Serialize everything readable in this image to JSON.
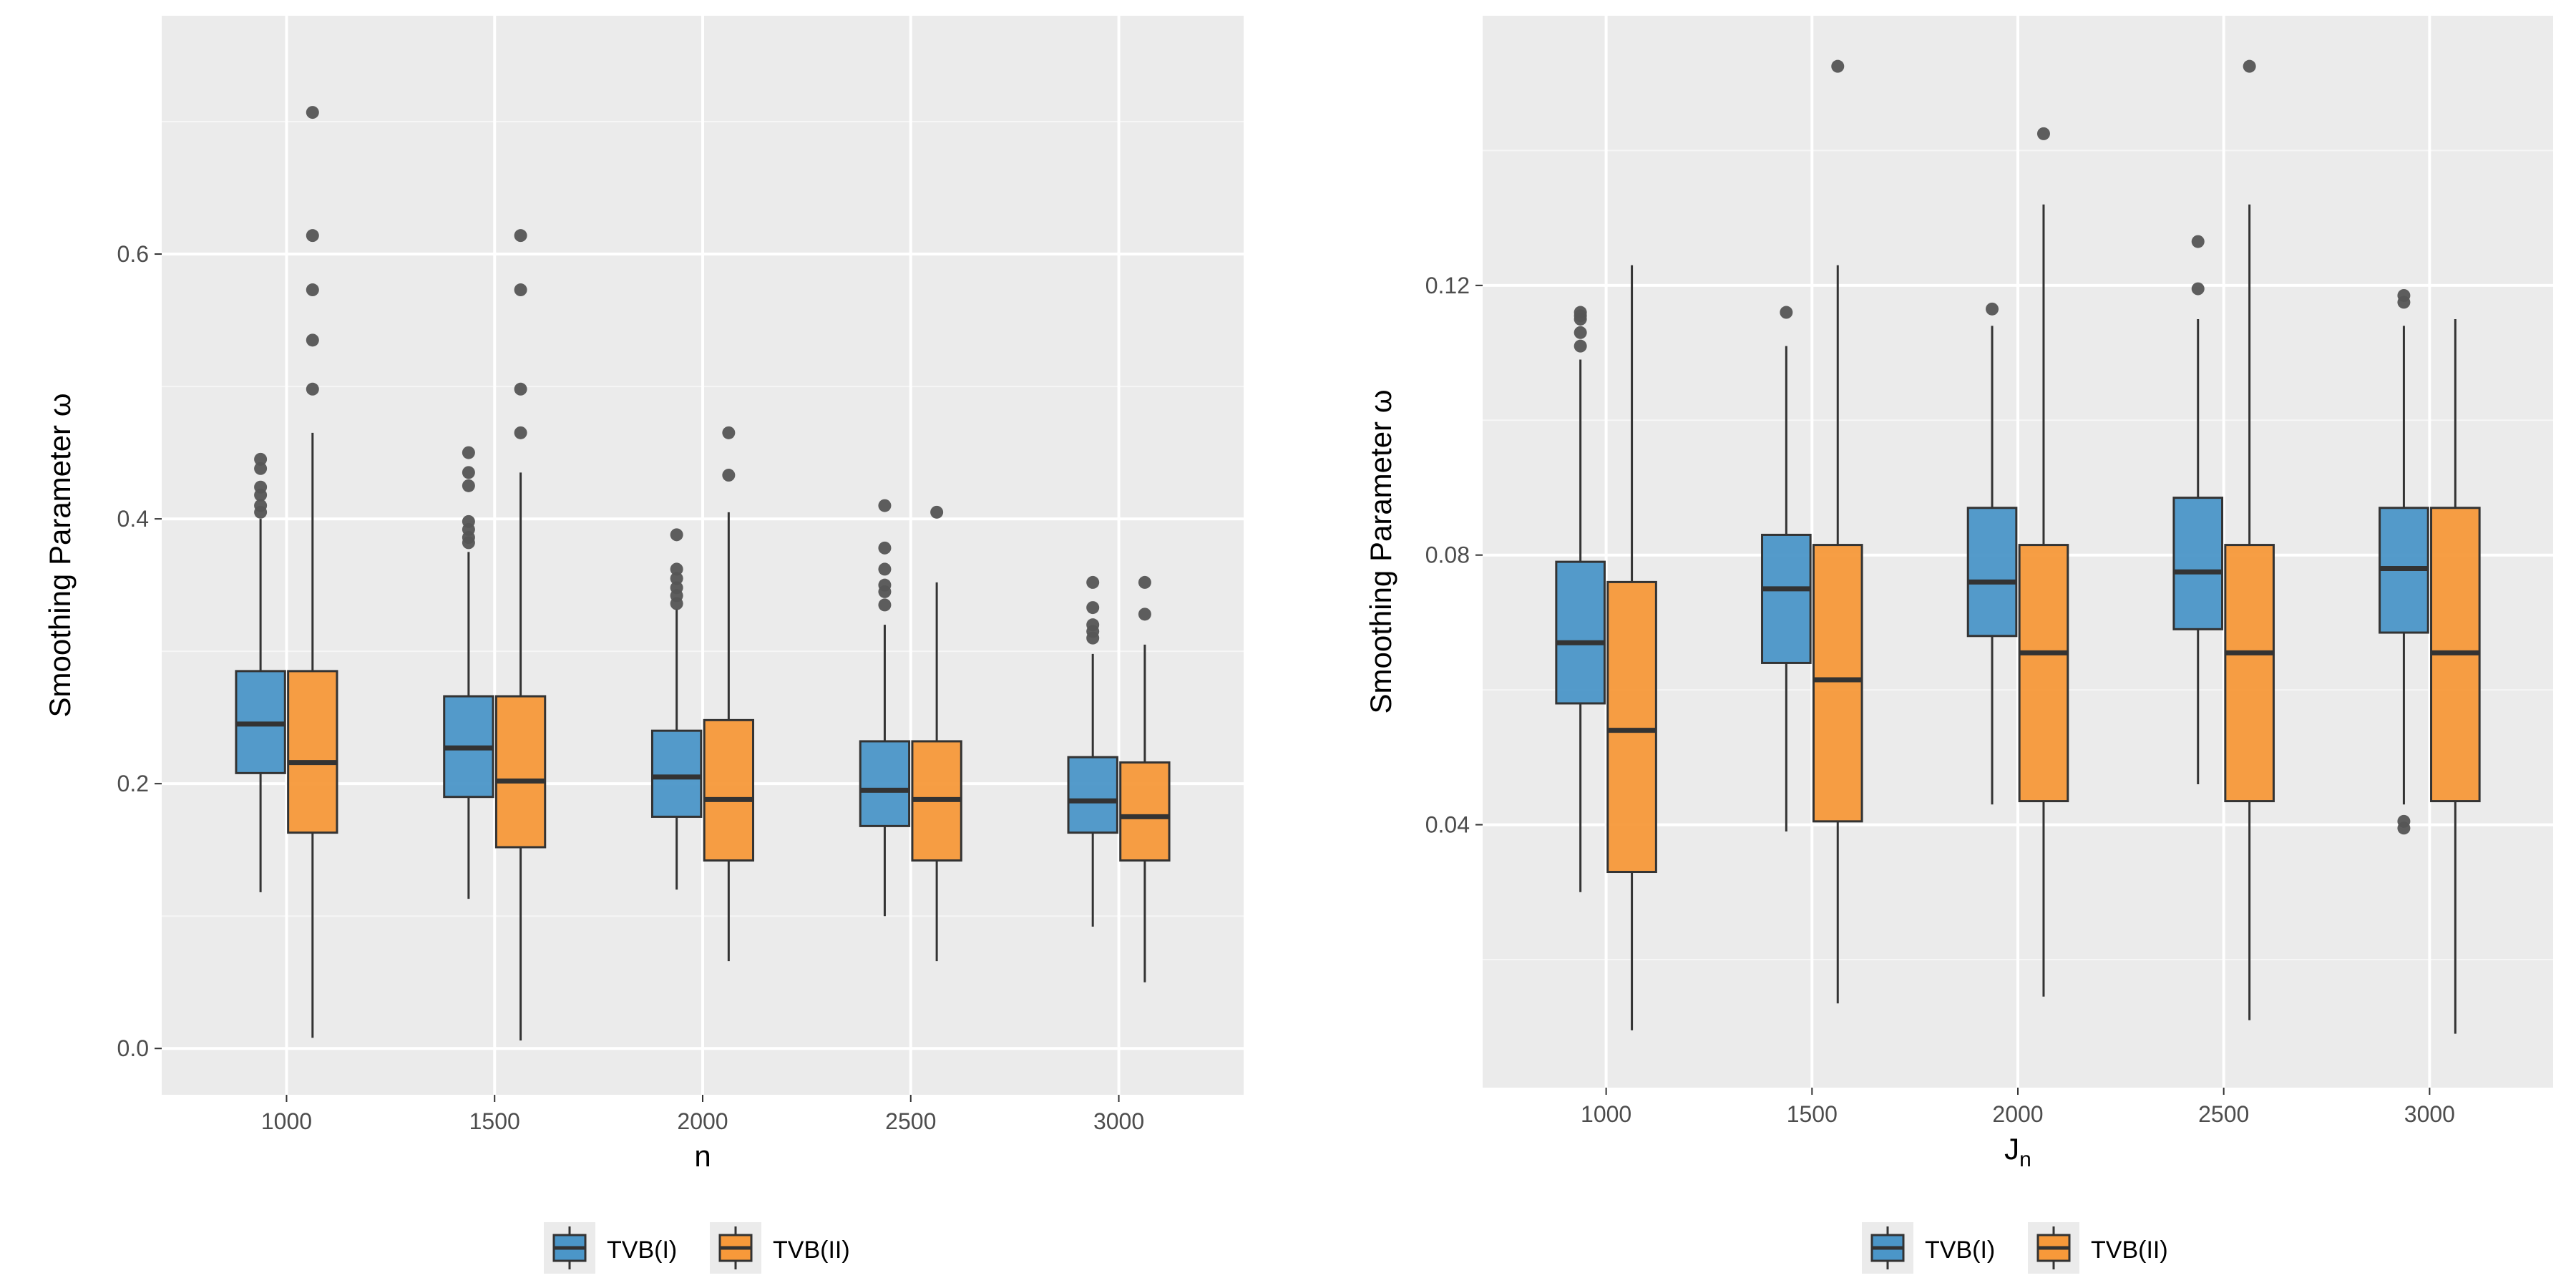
{
  "colors": {
    "panel_bg": "#EBEBEB",
    "grid": "#FFFFFF",
    "outline": "#333333",
    "outlier": "#555555",
    "series": [
      "#4B96C8",
      "#F7993A"
    ]
  },
  "legend": {
    "items": [
      "TVB(I)",
      "TVB(II)"
    ]
  },
  "chart_data": [
    {
      "type": "boxplot",
      "xlabel": "n",
      "ylabel": "Smoothing Parameter ω",
      "ylim": [
        -0.035,
        0.78
      ],
      "yticks": [
        0.0,
        0.2,
        0.4,
        0.6
      ],
      "ytick_labels": [
        "0.0",
        "0.2",
        "0.4",
        "0.6"
      ],
      "categories": [
        "1000",
        "1500",
        "2000",
        "2500",
        "3000"
      ],
      "series": [
        {
          "name": "TVB(I)",
          "boxes": [
            {
              "min": 0.118,
              "q1": 0.208,
              "median": 0.245,
              "q3": 0.285,
              "max": 0.4,
              "outliers": [
                0.405,
                0.41,
                0.418,
                0.424,
                0.438,
                0.445
              ]
            },
            {
              "min": 0.113,
              "q1": 0.19,
              "median": 0.227,
              "q3": 0.266,
              "max": 0.375,
              "outliers": [
                0.382,
                0.386,
                0.392,
                0.398,
                0.425,
                0.435,
                0.45
              ]
            },
            {
              "min": 0.12,
              "q1": 0.175,
              "median": 0.205,
              "q3": 0.24,
              "max": 0.332,
              "outliers": [
                0.336,
                0.342,
                0.348,
                0.355,
                0.362,
                0.388
              ]
            },
            {
              "min": 0.1,
              "q1": 0.168,
              "median": 0.195,
              "q3": 0.232,
              "max": 0.32,
              "outliers": [
                0.335,
                0.345,
                0.35,
                0.362,
                0.378,
                0.41
              ]
            },
            {
              "min": 0.092,
              "q1": 0.163,
              "median": 0.187,
              "q3": 0.22,
              "max": 0.298,
              "outliers": [
                0.31,
                0.315,
                0.32,
                0.333,
                0.352
              ]
            }
          ]
        },
        {
          "name": "TVB(II)",
          "boxes": [
            {
              "min": 0.008,
              "q1": 0.163,
              "median": 0.216,
              "q3": 0.285,
              "max": 0.465,
              "outliers": [
                0.498,
                0.535,
                0.573,
                0.614,
                0.707
              ]
            },
            {
              "min": 0.006,
              "q1": 0.152,
              "median": 0.202,
              "q3": 0.266,
              "max": 0.435,
              "outliers": [
                0.465,
                0.498,
                0.573,
                0.614
              ]
            },
            {
              "min": 0.066,
              "q1": 0.142,
              "median": 0.188,
              "q3": 0.248,
              "max": 0.405,
              "outliers": [
                0.433,
                0.465
              ]
            },
            {
              "min": 0.066,
              "q1": 0.142,
              "median": 0.188,
              "q3": 0.232,
              "max": 0.352,
              "outliers": [
                0.405
              ]
            },
            {
              "min": 0.05,
              "q1": 0.142,
              "median": 0.175,
              "q3": 0.216,
              "max": 0.305,
              "outliers": [
                0.328,
                0.352
              ]
            }
          ]
        }
      ]
    },
    {
      "type": "boxplot",
      "xlabel": "J",
      "xlabel_sub": "n",
      "ylabel": "Smoothing Parameter ω",
      "ylim": [
        0.001,
        0.16
      ],
      "yticks": [
        0.04,
        0.08,
        0.12
      ],
      "ytick_labels": [
        "0.04",
        "0.08",
        "0.12"
      ],
      "categories": [
        "1000",
        "1500",
        "2000",
        "2500",
        "3000"
      ],
      "series": [
        {
          "name": "TVB(I)",
          "boxes": [
            {
              "min": 0.03,
              "q1": 0.058,
              "median": 0.067,
              "q3": 0.079,
              "max": 0.109,
              "outliers": [
                0.111,
                0.113,
                0.115,
                0.1155,
                0.116
              ]
            },
            {
              "min": 0.039,
              "q1": 0.064,
              "median": 0.075,
              "q3": 0.083,
              "max": 0.111,
              "outliers": [
                0.116
              ]
            },
            {
              "min": 0.043,
              "q1": 0.068,
              "median": 0.076,
              "q3": 0.087,
              "max": 0.114,
              "outliers": [
                0.1165
              ]
            },
            {
              "min": 0.046,
              "q1": 0.069,
              "median": 0.0775,
              "q3": 0.0885,
              "max": 0.115,
              "outliers": [
                0.1195,
                0.1265
              ]
            },
            {
              "min": 0.043,
              "q1": 0.0685,
              "median": 0.078,
              "q3": 0.087,
              "max": 0.114,
              "outliers": [
                0.0395,
                0.0405,
                0.1175,
                0.1185
              ]
            }
          ]
        },
        {
          "name": "TVB(II)",
          "boxes": [
            {
              "min": 0.0095,
              "q1": 0.033,
              "median": 0.054,
              "q3": 0.076,
              "max": 0.123,
              "outliers": []
            },
            {
              "min": 0.0135,
              "q1": 0.0405,
              "median": 0.0615,
              "q3": 0.0815,
              "max": 0.123,
              "outliers": [
                0.1525
              ]
            },
            {
              "min": 0.0145,
              "q1": 0.0435,
              "median": 0.0655,
              "q3": 0.0815,
              "max": 0.132,
              "outliers": [
                0.1425
              ]
            },
            {
              "min": 0.011,
              "q1": 0.0435,
              "median": 0.0655,
              "q3": 0.0815,
              "max": 0.132,
              "outliers": [
                0.1525
              ]
            },
            {
              "min": 0.009,
              "q1": 0.0435,
              "median": 0.0655,
              "q3": 0.087,
              "max": 0.115,
              "outliers": []
            }
          ]
        }
      ]
    }
  ]
}
